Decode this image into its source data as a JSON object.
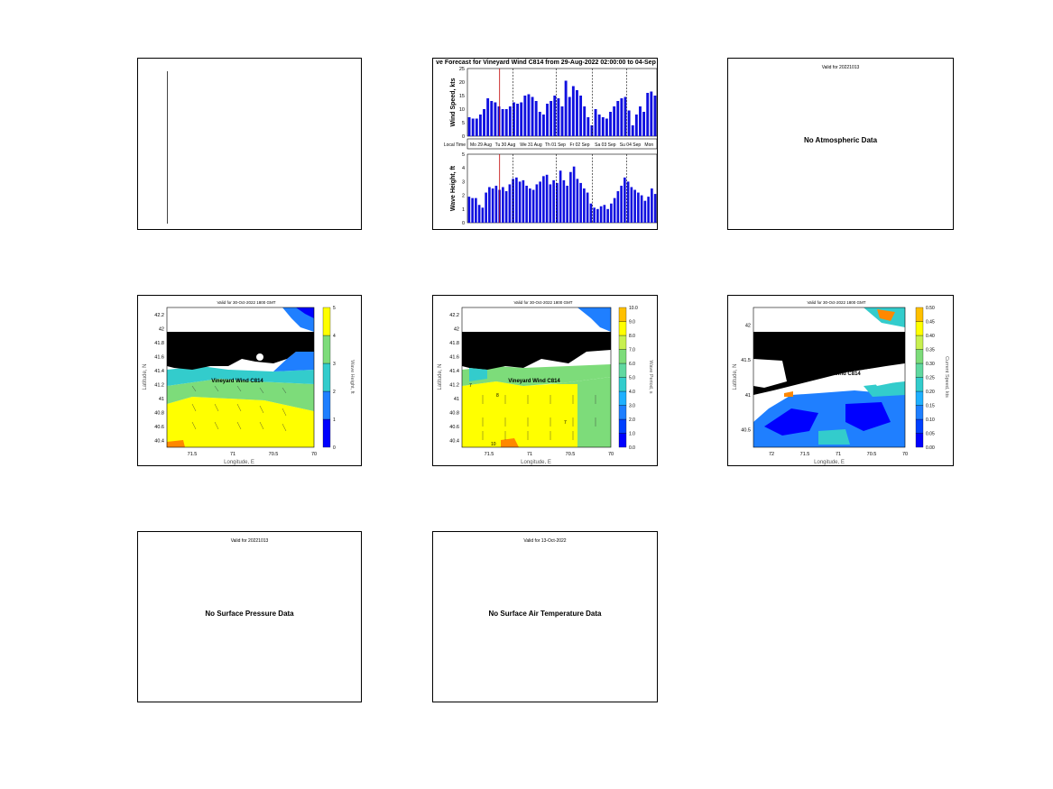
{
  "text_panel": {
    "lines": [
      "",
      "",
      "",
      "",
      "",
      "",
      "",
      "",
      "",
      "",
      "",
      "",
      "",
      "",
      "",
      "",
      "",
      "",
      "",
      "",
      "",
      "",
      "",
      "",
      "",
      "",
      "",
      "",
      "",
      "",
      "",
      "",
      "",
      "",
      "",
      "",
      "",
      "",
      "",
      ""
    ]
  },
  "bar_panel": {
    "title": "ve Forecast for Vineyard Wind C814 from 29-Aug-2022 02:00:00 to 04-Sep",
    "time_row_label": "Local Time",
    "day_labels": [
      "Mo 29 Aug",
      "Tu 30 Aug",
      "We 31 Aug",
      "Th 01 Sep",
      "Fr 02 Sep",
      "Sa 03 Sep",
      "Su 04 Sep",
      "Mon"
    ]
  },
  "map_panels": {
    "wave": {
      "title": "Valid for 30-Oct-2022 1800 GMT",
      "colorbar_label": "Wave Height, ft"
    },
    "period": {
      "title": "Valid for 30-Oct-2022 1800 GMT",
      "colorbar_label": "Wave Period, s"
    },
    "current": {
      "title": "Valid for 30-Oct-2022 1800 GMT",
      "colorbar_label": "Current Speed, kts"
    },
    "site_label": "Vineyard Wind C814"
  },
  "atmos_panel": {
    "title": "Valid for 20221013",
    "message": "No Atmospheric Data"
  },
  "pressure_panel": {
    "title": "Valid for 20221013",
    "message": "No Surface Pressure Data"
  },
  "airtemp_panel": {
    "title": "Valid for 13-Oct-2022",
    "message": "No Surface Air Temperature Data"
  },
  "colors": {
    "bar": "#1010e0",
    "marker": "#c00000",
    "land": "#000000"
  },
  "chart_data": [
    {
      "type": "bar",
      "ylabel": "Wind Speed, kts",
      "ylim": [
        0,
        25
      ],
      "yticks": [
        0,
        5,
        10,
        15,
        20,
        25
      ],
      "values": [
        7,
        6.5,
        6.5,
        8,
        10,
        14,
        13,
        12.5,
        11,
        10,
        10,
        11,
        12.5,
        12,
        12.5,
        15,
        15.5,
        14.5,
        13,
        9,
        8,
        12,
        13,
        15,
        14,
        11,
        20.5,
        14.5,
        18.5,
        17,
        15,
        11,
        7,
        4,
        10,
        8,
        7,
        6.5,
        9,
        11,
        13,
        14,
        14.5,
        9.5,
        4,
        8,
        11,
        9,
        16,
        16.5,
        15
      ]
    },
    {
      "type": "bar",
      "ylabel": "Wave Height, ft",
      "ylim": [
        0,
        5
      ],
      "yticks": [
        0,
        1,
        2,
        3,
        4,
        5
      ],
      "values": [
        1.9,
        1.8,
        1.8,
        1.3,
        1.1,
        2.2,
        2.6,
        2.5,
        2.7,
        2.4,
        2.6,
        2.3,
        2.8,
        3.2,
        3.3,
        3.0,
        3.1,
        2.7,
        2.5,
        2.4,
        2.8,
        3.0,
        3.4,
        3.5,
        2.8,
        3.1,
        2.9,
        3.8,
        3.1,
        2.7,
        3.7,
        4.1,
        3.2,
        2.9,
        2.5,
        2.2,
        1.4,
        1.1,
        1.0,
        1.2,
        1.3,
        1.0,
        1.4,
        1.8,
        2.3,
        2.7,
        3.3,
        3.0,
        2.6,
        2.4,
        2.2,
        2.0,
        1.6,
        1.9,
        2.5,
        2.1
      ]
    },
    {
      "type": "heatmap",
      "title": "Valid for 30-Oct-2022 1800 GMT",
      "xlabel": "Longitude, E",
      "ylabel": "Latitude, N",
      "xticks": [
        "71.5",
        "71",
        "70.5",
        "70"
      ],
      "yticks": [
        "42.2",
        "42",
        "41.8",
        "41.6",
        "41.4",
        "41.2",
        "41",
        "40.8",
        "40.6",
        "40.4"
      ],
      "colorbar_label": "Wave Height, ft",
      "colorbar_ticks": [
        "0",
        "1",
        "2",
        "3",
        "4",
        "5"
      ],
      "colorbar_range": [
        0,
        5
      ]
    },
    {
      "type": "heatmap",
      "title": "Valid for 30-Oct-2022 1800 GMT",
      "xlabel": "Longitude, E",
      "ylabel": "Latitude, N",
      "xticks": [
        "71.5",
        "71",
        "70.5",
        "70"
      ],
      "yticks": [
        "42.2",
        "42",
        "41.8",
        "41.6",
        "41.4",
        "41.2",
        "41",
        "40.8",
        "40.6",
        "40.4"
      ],
      "colorbar_label": "Wave Period, s",
      "colorbar_ticks": [
        "0.0",
        "1.0",
        "2.0",
        "3.0",
        "4.0",
        "5.0",
        "6.0",
        "7.0",
        "8.0",
        "9.0",
        "10.0"
      ],
      "colorbar_range": [
        0,
        10
      ],
      "contour_labels": [
        "7",
        "8",
        "7",
        "10"
      ]
    },
    {
      "type": "heatmap",
      "title": "Valid for 30-Oct-2022 1800 GMT",
      "xlabel": "Longitude, E",
      "ylabel": "Latitude, N",
      "xticks": [
        "72",
        "71.5",
        "71",
        "70.5",
        "70"
      ],
      "yticks": [
        "42",
        "41.5",
        "41",
        "40.5"
      ],
      "colorbar_label": "Current Speed, kts",
      "colorbar_ticks": [
        "0.00",
        "0.05",
        "0.10",
        "0.15",
        "0.20",
        "0.25",
        "0.30",
        "0.35",
        "0.40",
        "0.45",
        "0.50"
      ],
      "colorbar_range": [
        0,
        0.5
      ]
    }
  ]
}
